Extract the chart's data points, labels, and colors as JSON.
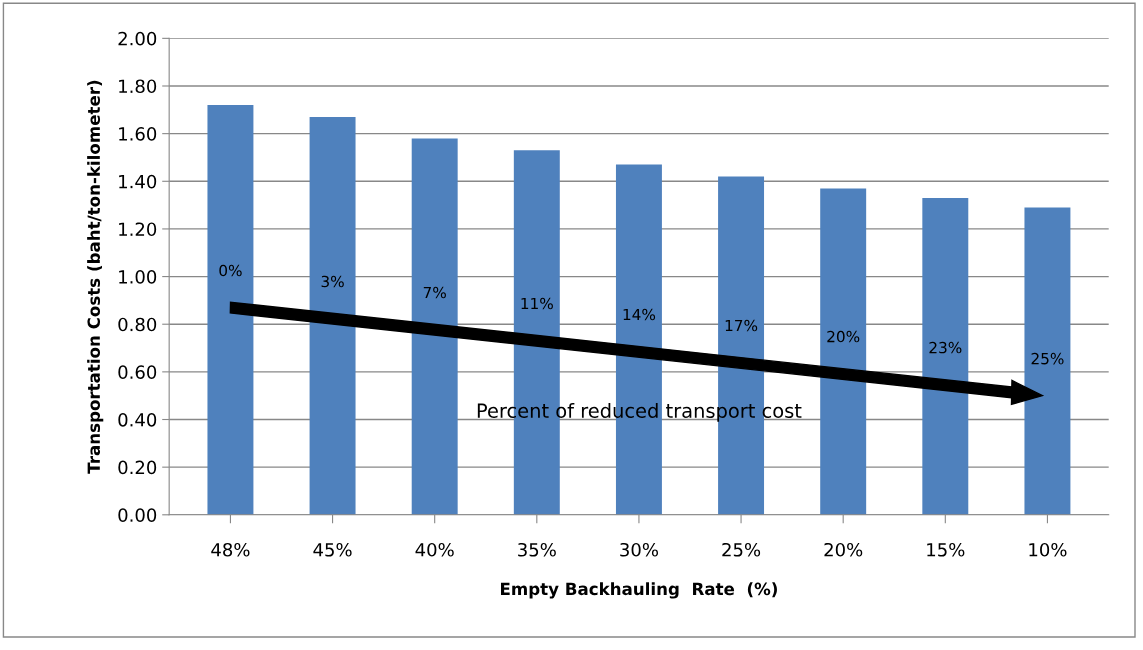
{
  "chart_data": {
    "type": "bar",
    "xlabel": "Empty Backhauling  Rate  (%)",
    "ylabel": "Transportation Costs (baht/ton-kilometer)",
    "categories": [
      "48%",
      "45%",
      "40%",
      "35%",
      "30%",
      "25%",
      "20%",
      "15%",
      "10%"
    ],
    "values": [
      1.72,
      1.67,
      1.58,
      1.53,
      1.47,
      1.42,
      1.37,
      1.33,
      1.29
    ],
    "color": "#4f81bd",
    "ylim": [
      0,
      2
    ],
    "yticks": [
      {
        "value": 0,
        "label": "0.00"
      },
      {
        "value": 0.2,
        "label": "0.20"
      },
      {
        "value": 0.4,
        "label": "0.40"
      },
      {
        "value": 0.6,
        "label": "0.60"
      },
      {
        "value": 0.8,
        "label": "0.80"
      },
      {
        "value": 1.0,
        "label": "1.00"
      },
      {
        "value": 1.2,
        "label": "1.20"
      },
      {
        "value": 1.4,
        "label": "1.40"
      },
      {
        "value": 1.6,
        "label": "1.60"
      },
      {
        "value": 1.8,
        "label": "1.80"
      },
      {
        "value": 2.0,
        "label": "2.00"
      }
    ],
    "grid": "y",
    "annotations": [
      "0%",
      "3%",
      "7%",
      "11%",
      "14%",
      "17%",
      "20%",
      "23%",
      "25%",
      "Percent of reduced transport cost"
    ]
  }
}
